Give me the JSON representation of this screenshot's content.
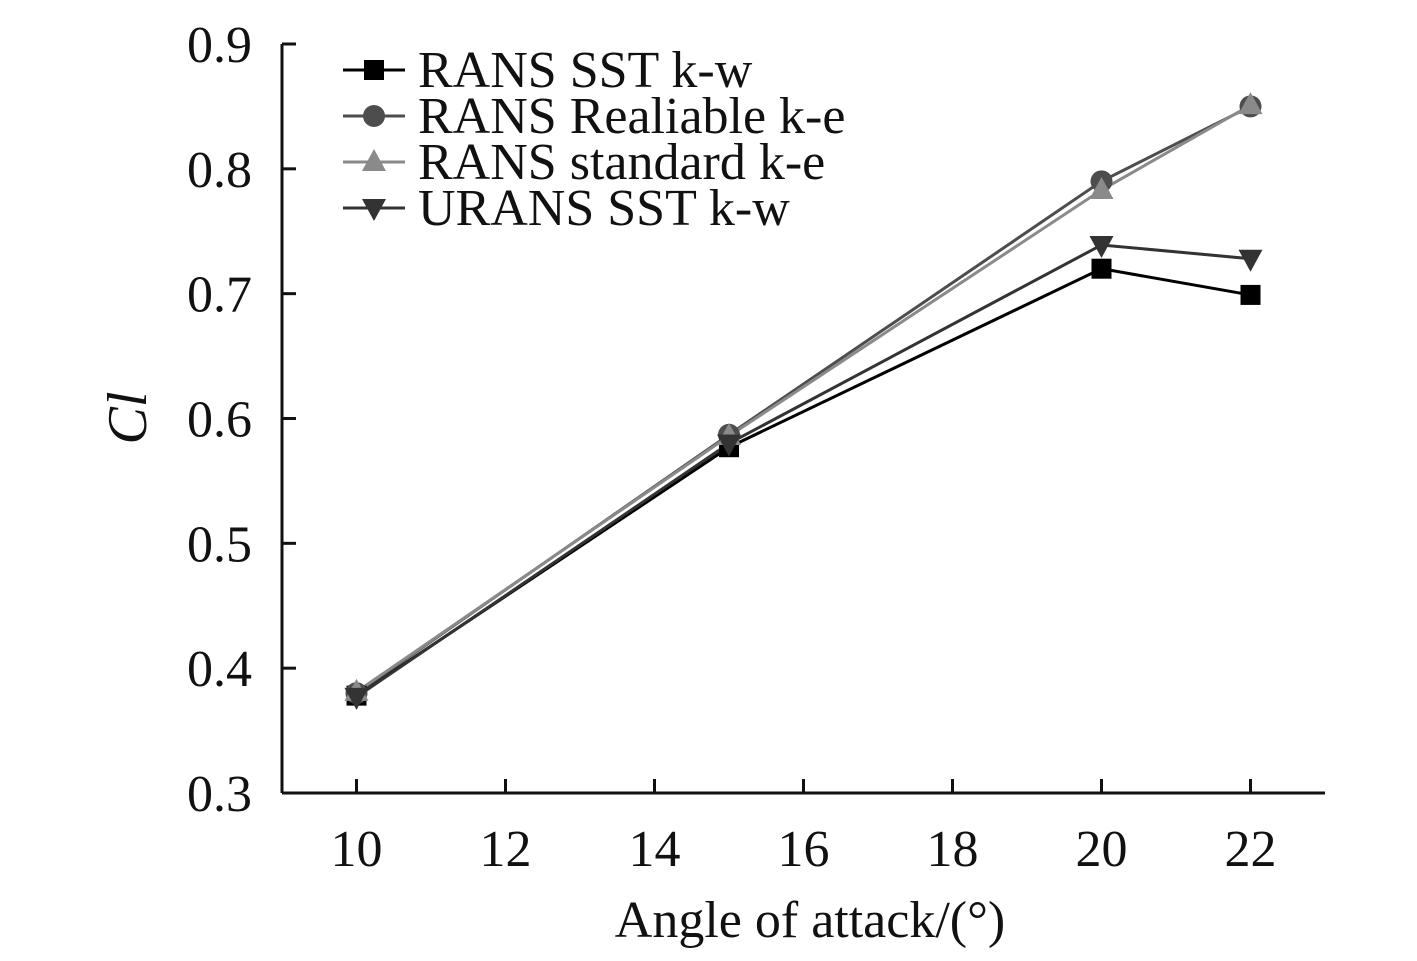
{
  "chart_data": {
    "type": "line",
    "xlabel": "Angle of attack/(°)",
    "ylabel": "Cl",
    "xlim": [
      9,
      23
    ],
    "ylim": [
      0.3,
      0.9
    ],
    "xticks": [
      10,
      12,
      14,
      16,
      18,
      20,
      22
    ],
    "yticks": [
      0.3,
      0.4,
      0.5,
      0.6,
      0.7,
      0.8,
      0.9
    ],
    "x": [
      10,
      15,
      20,
      22
    ],
    "grid": false,
    "legend_position": "top-left",
    "series": [
      {
        "name": "RANS SST k-w",
        "values": [
          0.378,
          0.577,
          0.72,
          0.699
        ],
        "marker": "square",
        "color": "#000000"
      },
      {
        "name": "RANS Realiable k-e",
        "values": [
          0.38,
          0.587,
          0.79,
          0.85
        ],
        "marker": "circle",
        "color": "#4d4d4d"
      },
      {
        "name": "RANS standard k-e",
        "values": [
          0.381,
          0.586,
          0.783,
          0.851
        ],
        "marker": "triangle-up",
        "color": "#8a8a8a"
      },
      {
        "name": "URANS SST k-w",
        "values": [
          0.377,
          0.58,
          0.739,
          0.728
        ],
        "marker": "triangle-down",
        "color": "#333333"
      }
    ]
  }
}
